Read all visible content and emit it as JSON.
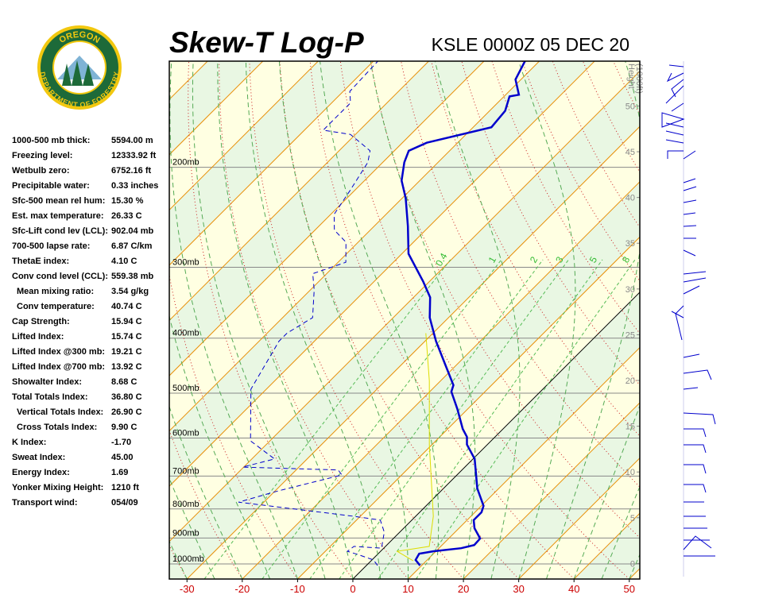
{
  "chart_data": {
    "type": "skewt",
    "title": "Skew-T Log-P",
    "station": "KSLE 0000Z 05 DEC 20",
    "logo": {
      "top": "OREGON",
      "bottom": "DEPARTMENT OF FORESTRY"
    },
    "indices": [
      {
        "label": "1000-500 mb thick:",
        "value": "5594.00 m",
        "indent": false
      },
      {
        "label": "Freezing level:",
        "value": "12333.92 ft",
        "indent": false
      },
      {
        "label": "Wetbulb zero:",
        "value": "6752.16 ft",
        "indent": false
      },
      {
        "label": "Precipitable water:",
        "value": "0.33 inches",
        "indent": false
      },
      {
        "label": "Sfc-500 mean rel hum:",
        "value": "15.30 %",
        "indent": false
      },
      {
        "label": "Est. max temperature:",
        "value": "26.33 C",
        "indent": false
      },
      {
        "label": "Sfc-Lift cond lev (LCL):",
        "value": "902.04 mb",
        "indent": false
      },
      {
        "label": "700-500 lapse rate:",
        "value": "6.87 C/km",
        "indent": false
      },
      {
        "label": "ThetaE index:",
        "value": "4.10 C",
        "indent": false
      },
      {
        "label": "Conv cond level (CCL):",
        "value": "559.38 mb",
        "indent": false
      },
      {
        "label": "Mean mixing ratio:",
        "value": "3.54 g/kg",
        "indent": true
      },
      {
        "label": "Conv temperature:",
        "value": "40.74 C",
        "indent": true
      },
      {
        "label": "Cap Strength:",
        "value": "15.94 C",
        "indent": false
      },
      {
        "label": "Lifted Index:",
        "value": "15.74 C",
        "indent": false
      },
      {
        "label": "Lifted Index @300 mb:",
        "value": "19.21 C",
        "indent": false
      },
      {
        "label": "Lifted Index @700 mb:",
        "value": "13.92 C",
        "indent": false
      },
      {
        "label": "Showalter Index:",
        "value": "8.68 C",
        "indent": false
      },
      {
        "label": "Total Totals Index:",
        "value": "36.80 C",
        "indent": false
      },
      {
        "label": "Vertical Totals Index:",
        "value": "26.90 C",
        "indent": true
      },
      {
        "label": "Cross Totals Index:",
        "value": "9.90 C",
        "indent": true
      },
      {
        "label": "K Index:",
        "value": "-1.70",
        "indent": false
      },
      {
        "label": "Sweat Index:",
        "value": "45.00",
        "indent": false
      },
      {
        "label": "Energy Index:",
        "value": "1.69",
        "indent": false
      },
      {
        "label": "Yonker Mixing Height:",
        "value": "1210 ft",
        "indent": false
      },
      {
        "label": "Transport wind:",
        "value": "054/09",
        "indent": false
      }
    ],
    "xlim": [
      -33.2,
      51.9
    ],
    "xticks": [
      -30,
      -20,
      -10,
      0,
      10,
      20,
      30,
      40,
      50
    ],
    "ylim": [
      1063,
      130
    ],
    "log_y": true,
    "yticks": [
      {
        "value": 1000,
        "label": "1000mb"
      },
      {
        "value": 900,
        "label": "900mb"
      },
      {
        "value": 800,
        "label": "800mb"
      },
      {
        "value": 700,
        "label": "700mb"
      },
      {
        "value": 600,
        "label": "600mb"
      },
      {
        "value": 500,
        "label": "500mb"
      },
      {
        "value": 400,
        "label": "400mb"
      },
      {
        "value": 300,
        "label": "300mb"
      },
      {
        "value": 200,
        "label": "200mb"
      }
    ],
    "height_title": [
      "Height",
      "(1000ft)"
    ],
    "height_lim": [
      -1.7,
      54.9
    ],
    "height_ticks": [
      0,
      5,
      10,
      15,
      20,
      25,
      30,
      35,
      40,
      45,
      50
    ],
    "mixing_ratios": [
      0.4,
      1,
      2,
      3,
      5,
      8
    ],
    "band_colors": [
      "#e9f7e3",
      "#ffffe2"
    ],
    "isotherm_color": "#e8900a",
    "dry_adiabat_color": "#cc2222",
    "moist_adiabat_color": "#55aa55",
    "mixing_ratio_color": "#55bb55",
    "profiles": [
      {
        "color": "#0000cc",
        "width": 2.5,
        "line_style": "solid",
        "pressure": [
          1006,
          984,
          959,
          950,
          938,
          926,
          902,
          865,
          837,
          811,
          790,
          736,
          679,
          653,
          616,
          597,
          578,
          533,
          497,
          484,
          446,
          405,
          368,
          339,
          318,
          284,
          254,
          227,
          211,
          196,
          187,
          181,
          170,
          159,
          150,
          149,
          140,
          130
        ],
        "temperature": [
          9.7,
          7.9,
          7.4,
          9.5,
          14.0,
          15.8,
          15.7,
          12.8,
          11.2,
          11.2,
          10.4,
          6.1,
          2.2,
          0.3,
          -3.7,
          -5.1,
          -7.3,
          -11.9,
          -16.1,
          -16.9,
          -22.0,
          -28.0,
          -33.4,
          -37.0,
          -41.1,
          -48.8,
          -53.9,
          -59.3,
          -63.3,
          -66.1,
          -67.4,
          -65.6,
          -56.7,
          -57.2,
          -59.0,
          -57.6,
          -61.0,
          -62.6
        ]
      },
      {
        "color": "#0000cc",
        "width": 1,
        "line_style": "dashed",
        "pressure": [
          1006,
          984,
          962,
          950,
          931,
          938,
          879,
          837,
          824,
          778,
          743,
          697,
          683,
          675,
          653,
          607,
          492,
          405,
          392,
          368,
          329,
          308,
          294,
          271,
          258,
          242,
          220,
          196,
          187,
          175,
          172,
          164,
          154,
          147,
          130
        ],
        "temperature": [
          2.0,
          0.3,
          -3.6,
          -6.0,
          -5.7,
          -0.4,
          -2.8,
          -5.7,
          -11.2,
          -34.6,
          -29.4,
          -20.8,
          -22.4,
          -40.2,
          -35.9,
          -43.5,
          -52.8,
          -56.4,
          -56.4,
          -54.6,
          -59.3,
          -62.5,
          -58.6,
          -62.2,
          -66.5,
          -69.4,
          -70.8,
          -72.7,
          -74.4,
          -80.9,
          -86.6,
          -86.6,
          -86.6,
          -88.8,
          -89.2
        ]
      },
      {
        "color": "#dddd00",
        "width": 1,
        "line_style": "solid",
        "pressure": [
          987,
          950,
          931,
          824,
          616,
          476,
          392
        ],
        "temperature": [
          7.6,
          3.0,
          7.9,
          3.2,
          -10.5,
          -22.0,
          -31.3
        ]
      }
    ]
  }
}
